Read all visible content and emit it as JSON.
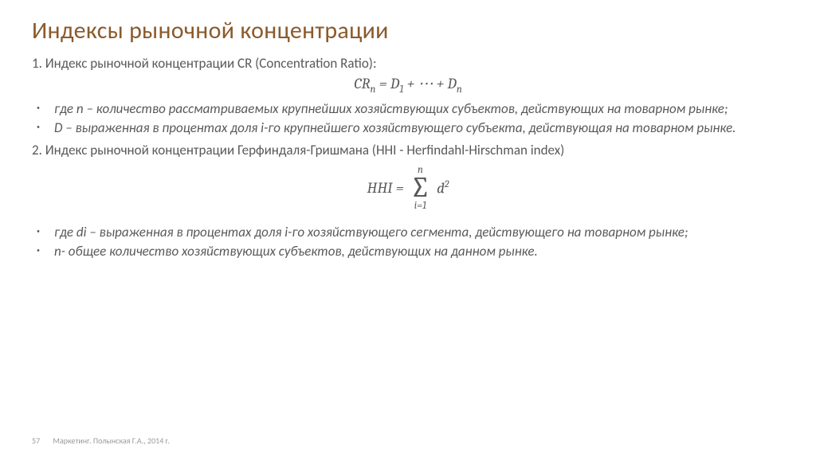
{
  "colors": {
    "title": "#8b5a2b",
    "body": "#595959",
    "footer": "#999999",
    "background": "#ffffff"
  },
  "title": "Индексы рыночной концентрации",
  "section1": {
    "heading": "1. Индекс рыночной концентрации CR (Concentration Ratio):",
    "formula_lhs": "CR",
    "formula_sub_lhs": "n",
    "formula_eq": " = ",
    "formula_d1": "D",
    "formula_d1_sub": "1",
    "formula_mid": " + ⋯ + ",
    "formula_dn": "D",
    "formula_dn_sub": "n",
    "bullets": [
      "где n – количество рассматриваемых крупнейших хозяйствующих субъектов, действующих на товарном рынке;",
      "D – выраженная в процентах доля i-го крупнейшего хозяйствующего субъекта, действующая на товарном рынке."
    ]
  },
  "section2": {
    "heading": "2. Индекс рыночной концентрации Герфиндаля-Гришмана (HHI - Herfindahl-Hirschman index)",
    "formula_lhs": "HHI = ",
    "sum_top": "n",
    "sum_bottom": "i=1",
    "formula_rhs_base": "d",
    "formula_rhs_sup": "2",
    "bullets": [
      "где di – выраженная в процентах доля i-го хозяйствующего сегмента, действующего на товарном рынке;",
      "n- общее количество хозяйствующих субъектов, действующих на данном рынке."
    ]
  },
  "footer": {
    "page": "57",
    "citation": "Маркетинг. Полынская Г.А., 2014 г."
  }
}
